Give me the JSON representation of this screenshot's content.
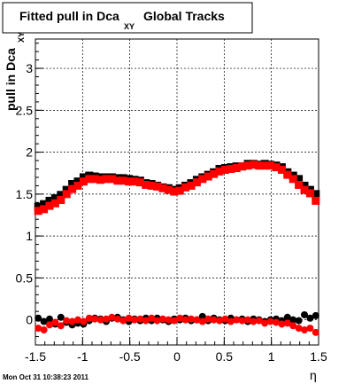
{
  "chart_data": {
    "type": "scatter",
    "title_main": "Fitted pull in Dca",
    "title_sub": "XY",
    "title_tail": "Global Tracks",
    "xlabel": "η",
    "ylabel_main": "pull in Dca",
    "ylabel_sub": "XY",
    "timestamp": "Mon Oct 31 10:38:23 2011",
    "xlim": [
      -1.5,
      1.5
    ],
    "ylim": [
      -0.3,
      3.35
    ],
    "grid": true,
    "x_ticks": [
      {
        "v": -1.5,
        "label": "-1.5"
      },
      {
        "v": -1.0,
        "label": "-1"
      },
      {
        "v": -0.5,
        "label": "-0.5"
      },
      {
        "v": 0.0,
        "label": "0"
      },
      {
        "v": 0.5,
        "label": "0.5"
      },
      {
        "v": 1.0,
        "label": "1"
      },
      {
        "v": 1.5,
        "label": "1.5"
      }
    ],
    "y_ticks": [
      {
        "v": 0.0,
        "label": "0"
      },
      {
        "v": 0.5,
        "label": "0.5"
      },
      {
        "v": 1.0,
        "label": "1"
      },
      {
        "v": 1.5,
        "label": "1.5"
      },
      {
        "v": 2.0,
        "label": "2"
      },
      {
        "v": 2.5,
        "label": "2.5"
      },
      {
        "v": 3.0,
        "label": "3"
      }
    ],
    "series": [
      {
        "color": "#000000",
        "marker": "square",
        "x": [
          -1.47,
          -1.41,
          -1.35,
          -1.29,
          -1.23,
          -1.17,
          -1.11,
          -1.05,
          -0.99,
          -0.93,
          -0.87,
          -0.81,
          -0.75,
          -0.69,
          -0.63,
          -0.57,
          -0.51,
          -0.45,
          -0.39,
          -0.33,
          -0.27,
          -0.21,
          -0.15,
          -0.09,
          -0.03,
          0.03,
          0.09,
          0.15,
          0.21,
          0.27,
          0.33,
          0.39,
          0.45,
          0.51,
          0.57,
          0.63,
          0.69,
          0.75,
          0.81,
          0.87,
          0.93,
          0.99,
          1.05,
          1.11,
          1.17,
          1.23,
          1.29,
          1.35,
          1.41,
          1.47
        ],
        "y": [
          1.35,
          1.38,
          1.42,
          1.45,
          1.49,
          1.55,
          1.62,
          1.65,
          1.7,
          1.72,
          1.71,
          1.7,
          1.7,
          1.7,
          1.69,
          1.69,
          1.68,
          1.67,
          1.66,
          1.63,
          1.62,
          1.6,
          1.58,
          1.57,
          1.55,
          1.57,
          1.6,
          1.63,
          1.67,
          1.7,
          1.73,
          1.76,
          1.8,
          1.81,
          1.82,
          1.83,
          1.83,
          1.86,
          1.86,
          1.85,
          1.86,
          1.85,
          1.84,
          1.82,
          1.76,
          1.72,
          1.68,
          1.6,
          1.55,
          1.5
        ]
      },
      {
        "color": "#ff0000",
        "marker": "square",
        "x": [
          -1.47,
          -1.41,
          -1.35,
          -1.29,
          -1.23,
          -1.17,
          -1.11,
          -1.05,
          -0.99,
          -0.93,
          -0.87,
          -0.81,
          -0.75,
          -0.69,
          -0.63,
          -0.57,
          -0.51,
          -0.45,
          -0.39,
          -0.33,
          -0.27,
          -0.21,
          -0.15,
          -0.09,
          -0.03,
          0.03,
          0.09,
          0.15,
          0.21,
          0.27,
          0.33,
          0.39,
          0.45,
          0.51,
          0.57,
          0.63,
          0.69,
          0.75,
          0.81,
          0.87,
          0.93,
          0.99,
          1.05,
          1.11,
          1.17,
          1.23,
          1.29,
          1.35,
          1.41,
          1.47
        ],
        "y": [
          1.3,
          1.32,
          1.36,
          1.39,
          1.43,
          1.5,
          1.56,
          1.6,
          1.65,
          1.68,
          1.68,
          1.67,
          1.68,
          1.68,
          1.66,
          1.66,
          1.65,
          1.65,
          1.64,
          1.61,
          1.6,
          1.59,
          1.57,
          1.55,
          1.53,
          1.54,
          1.58,
          1.6,
          1.64,
          1.68,
          1.71,
          1.74,
          1.77,
          1.79,
          1.8,
          1.81,
          1.83,
          1.84,
          1.85,
          1.84,
          1.84,
          1.84,
          1.82,
          1.79,
          1.73,
          1.68,
          1.61,
          1.55,
          1.51,
          1.42
        ]
      },
      {
        "color": "#000000",
        "marker": "circle",
        "x": [
          -1.47,
          -1.41,
          -1.35,
          -1.29,
          -1.23,
          -1.17,
          -1.11,
          -1.05,
          -0.99,
          -0.93,
          -0.87,
          -0.81,
          -0.75,
          -0.69,
          -0.63,
          -0.57,
          -0.51,
          -0.45,
          -0.39,
          -0.33,
          -0.27,
          -0.21,
          -0.15,
          -0.09,
          -0.03,
          0.03,
          0.09,
          0.15,
          0.21,
          0.27,
          0.33,
          0.39,
          0.45,
          0.51,
          0.57,
          0.63,
          0.69,
          0.75,
          0.81,
          0.87,
          0.93,
          0.99,
          1.05,
          1.11,
          1.17,
          1.23,
          1.29,
          1.35,
          1.41,
          1.47
        ],
        "y": [
          0.02,
          -0.02,
          0.01,
          -0.05,
          0.03,
          -0.03,
          -0.06,
          -0.04,
          -0.05,
          -0.01,
          0.02,
          0.01,
          -0.02,
          0.02,
          0.03,
          0.0,
          -0.02,
          0.01,
          -0.01,
          0.02,
          -0.01,
          0.02,
          0.0,
          -0.02,
          0.01,
          0.0,
          0.02,
          -0.01,
          0.0,
          0.04,
          -0.01,
          0.02,
          0.0,
          -0.01,
          0.02,
          0.0,
          0.01,
          -0.02,
          0.01,
          0.0,
          -0.02,
          0.0,
          0.01,
          -0.01,
          0.03,
          0.0,
          -0.01,
          0.06,
          0.02,
          0.05
        ]
      },
      {
        "color": "#ff0000",
        "marker": "circle",
        "x": [
          -1.47,
          -1.41,
          -1.35,
          -1.29,
          -1.23,
          -1.17,
          -1.11,
          -1.05,
          -0.99,
          -0.93,
          -0.87,
          -0.81,
          -0.75,
          -0.69,
          -0.63,
          -0.57,
          -0.51,
          -0.45,
          -0.39,
          -0.33,
          -0.27,
          -0.21,
          -0.15,
          -0.09,
          -0.03,
          0.03,
          0.09,
          0.15,
          0.21,
          0.27,
          0.33,
          0.39,
          0.45,
          0.51,
          0.57,
          0.63,
          0.69,
          0.75,
          0.81,
          0.87,
          0.93,
          0.99,
          1.05,
          1.11,
          1.17,
          1.23,
          1.29,
          1.35,
          1.41,
          1.47
        ],
        "y": [
          -0.1,
          -0.12,
          -0.06,
          -0.03,
          -0.07,
          -0.01,
          -0.02,
          0.0,
          -0.02,
          0.02,
          0.01,
          0.0,
          0.01,
          0.03,
          0.01,
          -0.01,
          0.02,
          0.0,
          0.01,
          -0.01,
          0.02,
          -0.01,
          0.01,
          0.0,
          -0.01,
          0.02,
          0.0,
          0.01,
          0.0,
          -0.02,
          0.01,
          0.0,
          -0.01,
          0.01,
          -0.02,
          0.0,
          -0.01,
          0.0,
          -0.02,
          -0.01,
          -0.04,
          -0.02,
          -0.03,
          -0.05,
          -0.04,
          -0.07,
          -0.1,
          -0.12,
          -0.1,
          -0.15
        ]
      }
    ]
  }
}
